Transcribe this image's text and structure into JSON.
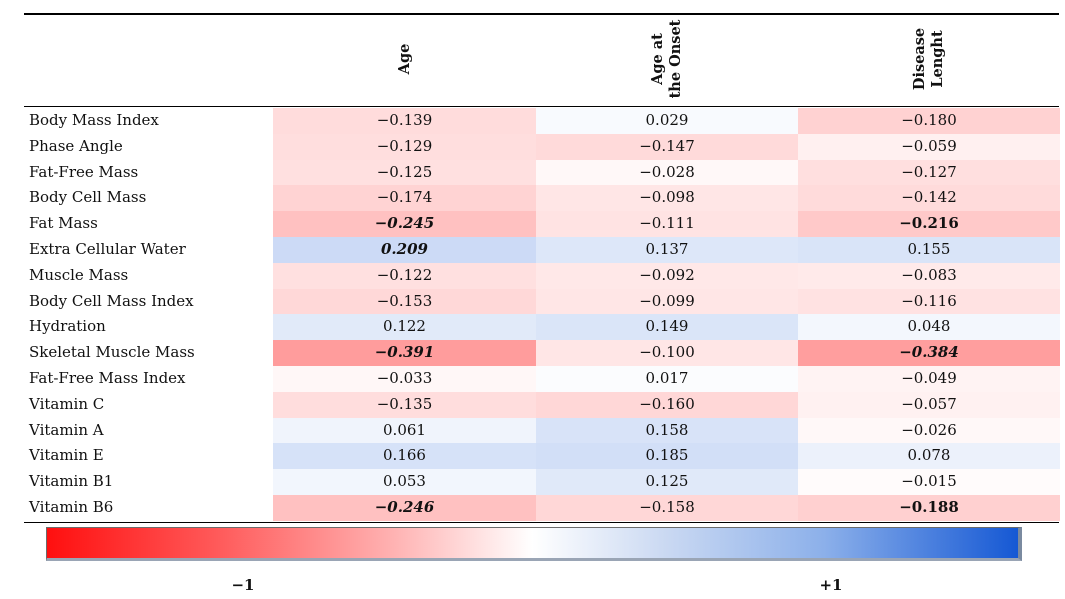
{
  "chart_data": {
    "type": "heatmap",
    "columns": [
      {
        "lines": [
          "Age"
        ]
      },
      {
        "lines": [
          "Age at",
          "the Onset"
        ]
      },
      {
        "lines": [
          "Disease",
          "Lenght"
        ]
      }
    ],
    "rows": [
      {
        "label": "Body Mass Index",
        "values": [
          -0.139,
          0.029,
          -0.18
        ],
        "display": [
          "−0.139",
          "0.029",
          "−0.180"
        ],
        "style": [
          "",
          "",
          ""
        ]
      },
      {
        "label": "Phase Angle",
        "values": [
          -0.129,
          -0.147,
          -0.059
        ],
        "display": [
          "−0.129",
          "−0.147",
          "−0.059"
        ],
        "style": [
          "",
          "",
          ""
        ]
      },
      {
        "label": "Fat-Free Mass",
        "values": [
          -0.125,
          -0.028,
          -0.127
        ],
        "display": [
          "−0.125",
          "−0.028",
          "−0.127"
        ],
        "style": [
          "",
          "",
          ""
        ]
      },
      {
        "label": "Body Cell Mass",
        "values": [
          -0.174,
          -0.098,
          -0.142
        ],
        "display": [
          "−0.174",
          "−0.098",
          "−0.142"
        ],
        "style": [
          "",
          "",
          ""
        ]
      },
      {
        "label": "Fat Mass",
        "values": [
          -0.245,
          -0.111,
          -0.216
        ],
        "display": [
          "−0.245",
          "−0.111",
          "−0.216"
        ],
        "style": [
          "bold-italic",
          "",
          "bold"
        ]
      },
      {
        "label": "Extra Cellular Water",
        "values": [
          0.209,
          0.137,
          0.155
        ],
        "display": [
          "0.209",
          "0.137",
          "0.155"
        ],
        "style": [
          "bold-italic",
          "",
          ""
        ]
      },
      {
        "label": "Muscle Mass",
        "values": [
          -0.122,
          -0.092,
          -0.083
        ],
        "display": [
          "−0.122",
          "−0.092",
          "−0.083"
        ],
        "style": [
          "",
          "",
          ""
        ]
      },
      {
        "label": "Body Cell Mass Index",
        "values": [
          -0.153,
          -0.099,
          -0.116
        ],
        "display": [
          "−0.153",
          "−0.099",
          "−0.116"
        ],
        "style": [
          "",
          "",
          ""
        ]
      },
      {
        "label": "Hydration",
        "values": [
          0.122,
          0.149,
          0.048
        ],
        "display": [
          "0.122",
          "0.149",
          "0.048"
        ],
        "style": [
          "",
          "",
          ""
        ]
      },
      {
        "label": "Skeletal Muscle Mass",
        "values": [
          -0.391,
          -0.1,
          -0.384
        ],
        "display": [
          "−0.391",
          "−0.100",
          "−0.384"
        ],
        "style": [
          "bold-italic",
          "",
          "bold-italic"
        ]
      },
      {
        "label": "Fat-Free Mass Index",
        "values": [
          -0.033,
          0.017,
          -0.049
        ],
        "display": [
          "−0.033",
          "0.017",
          "−0.049"
        ],
        "style": [
          "",
          "",
          ""
        ]
      },
      {
        "label": "Vitamin C",
        "values": [
          -0.135,
          -0.16,
          -0.057
        ],
        "display": [
          "−0.135",
          "−0.160",
          "−0.057"
        ],
        "style": [
          "",
          "",
          ""
        ]
      },
      {
        "label": "Vitamin A",
        "values": [
          0.061,
          0.158,
          -0.026
        ],
        "display": [
          "0.061",
          "0.158",
          "−0.026"
        ],
        "style": [
          "",
          "",
          ""
        ]
      },
      {
        "label": "Vitamin E",
        "values": [
          0.166,
          0.185,
          0.078
        ],
        "display": [
          "0.166",
          "0.185",
          "0.078"
        ],
        "style": [
          "",
          "",
          ""
        ]
      },
      {
        "label": "Vitamin B1",
        "values": [
          0.053,
          0.125,
          -0.015
        ],
        "display": [
          "0.053",
          "0.125",
          "−0.015"
        ],
        "style": [
          "",
          "",
          ""
        ]
      },
      {
        "label": "Vitamin B6",
        "values": [
          -0.246,
          -0.158,
          -0.188
        ],
        "display": [
          "−0.246",
          "−0.158",
          "−0.188"
        ],
        "style": [
          "bold-italic",
          "",
          "bold"
        ]
      }
    ],
    "color_scale": {
      "min": -1,
      "max": 1,
      "min_label": "−1",
      "max_label": "+1",
      "negative_color": "#ff0f0f",
      "neutral_color": "#ffffff",
      "positive_color": "#1558d4"
    }
  }
}
